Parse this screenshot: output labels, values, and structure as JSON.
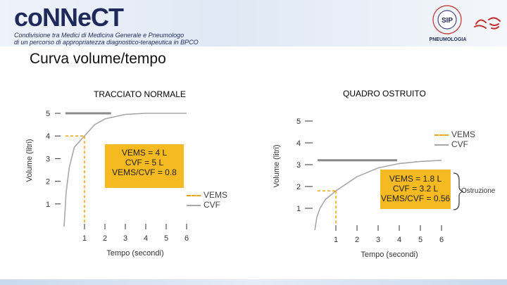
{
  "header": {
    "logo_text": "coNNeCT",
    "subtitle_line1": "Condivisione tra Medici di Medicina Generale e Pneumologo",
    "subtitle_line2": "di un percorso di appropriatezza diagnostico-terapeutica in BPCO",
    "society_abbr": "SIP",
    "society_word": "PNEUMOLOGIA"
  },
  "page_title": "Curva volume/tempo",
  "colors": {
    "vems": "#f0a400",
    "cvf": "#a8a8a8",
    "box": "#f5b922",
    "plateau": "#8a8a8a"
  },
  "chart_data": [
    {
      "type": "line",
      "title": "TRACCIATO NORMALE",
      "xlabel": "Tempo (secondi)",
      "ylabel": "Volume (litri)",
      "xlim": [
        0,
        6.5
      ],
      "ylim": [
        0,
        5.5
      ],
      "x_ticks": [
        1,
        2,
        3,
        4,
        5,
        6
      ],
      "y_ticks": [
        1,
        2,
        3,
        4,
        5
      ],
      "series": [
        {
          "name": "CVF",
          "x": [
            0,
            0.1,
            0.25,
            0.5,
            1,
            1.5,
            2,
            3,
            4,
            5,
            6
          ],
          "y": [
            0,
            1.5,
            2.6,
            3.5,
            4.0,
            4.5,
            4.75,
            4.95,
            5.0,
            5.0,
            5.0
          ]
        }
      ],
      "vems_marker": {
        "x": 1,
        "y": 4
      },
      "cvf_plateau": 5,
      "box_lines": [
        "VEMS = 4 L",
        "CVF = 5 L",
        "VEMS/CVF = 0.8"
      ],
      "legend": [
        "VEMS",
        "CVF"
      ]
    },
    {
      "type": "line",
      "title": "QUADRO OSTRUITO",
      "xlabel": "Tempo (secondi)",
      "ylabel": "Volume (litri)",
      "xlim": [
        0,
        6.5
      ],
      "ylim": [
        0,
        5.5
      ],
      "x_ticks": [
        1,
        2,
        3,
        4,
        5,
        6
      ],
      "y_ticks": [
        1,
        2,
        3,
        4,
        5
      ],
      "series": [
        {
          "name": "CVF",
          "x": [
            0,
            0.1,
            0.25,
            0.5,
            1,
            2,
            3,
            4,
            5,
            6
          ],
          "y": [
            0,
            0.6,
            1.0,
            1.4,
            1.8,
            2.45,
            2.85,
            3.05,
            3.15,
            3.2
          ]
        }
      ],
      "vems_marker": {
        "x": 1,
        "y": 1.8
      },
      "cvf_plateau": 3.2,
      "box_lines": [
        "VEMS = 1.8 L",
        "CVF = 3.2 L",
        "VEMS/CVF = 0.56"
      ],
      "legend": [
        "VEMS",
        "CVF"
      ],
      "annotation": "Ostruzione"
    }
  ]
}
